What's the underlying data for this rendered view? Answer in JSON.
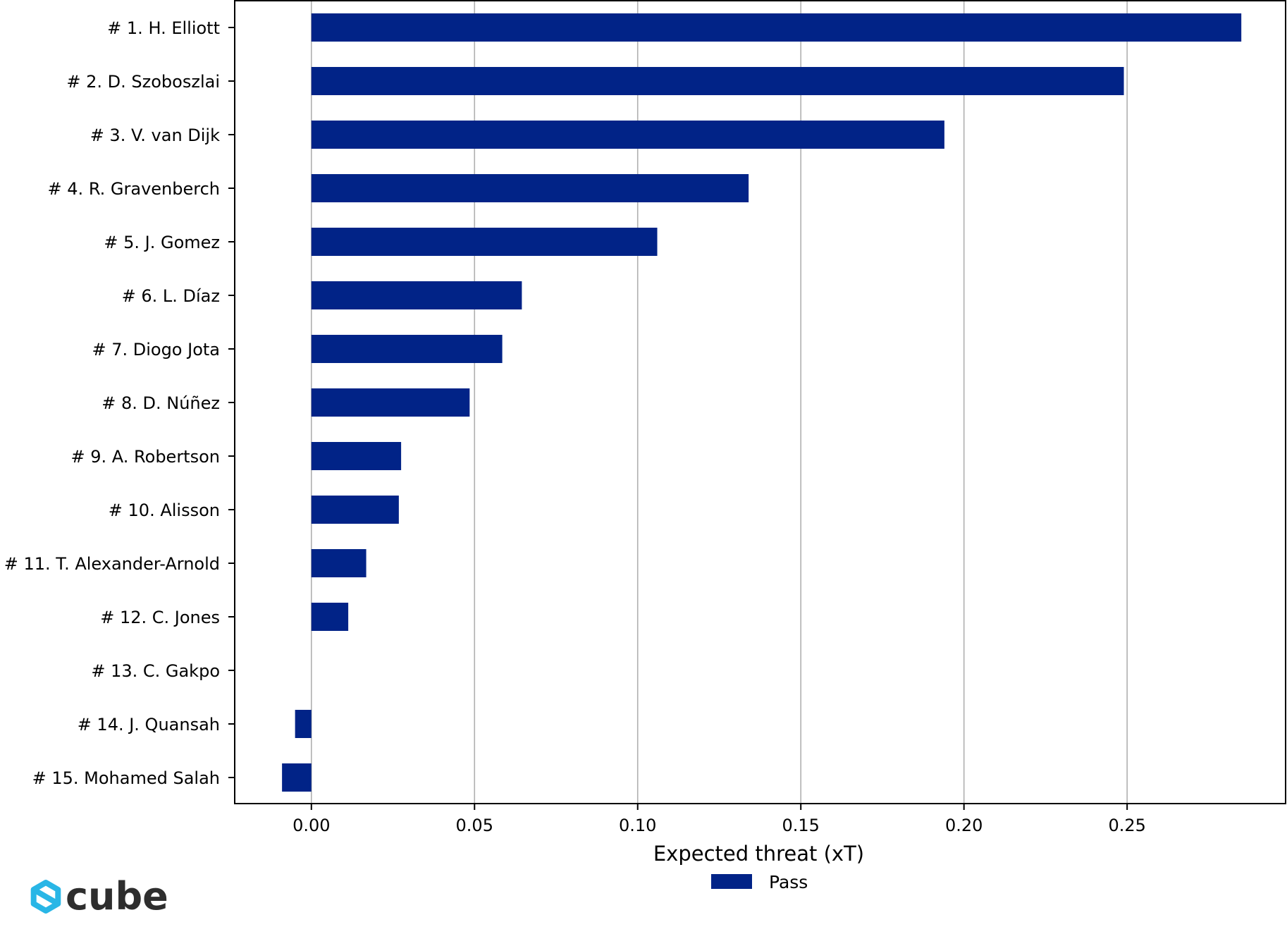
{
  "chart_data": {
    "type": "bar",
    "orientation": "horizontal",
    "categories": [
      "# 1.  H. Elliott",
      "# 2.  D. Szoboszlai",
      "# 3.  V. van Dijk",
      "# 4.  R. Gravenberch",
      "# 5.  J. Gomez",
      "# 6.  L. Díaz",
      "# 7.  Diogo Jota",
      "# 8.  D. Núñez",
      "# 9.  A. Robertson",
      "# 10.  Alisson",
      "# 11.  T. Alexander-Arnold",
      "# 12.  C. Jones",
      "# 13.  C. Gakpo",
      "# 14.  J. Quansah",
      "# 15.  Mohamed Salah"
    ],
    "series": [
      {
        "name": "Pass",
        "values": [
          0.285,
          0.249,
          0.194,
          0.134,
          0.106,
          0.0645,
          0.0585,
          0.0485,
          0.0275,
          0.0268,
          0.0168,
          0.0113,
          0.0,
          -0.005,
          -0.009
        ]
      }
    ],
    "xlabel": "Expected threat (xT)",
    "xlim": [
      -0.0235,
      0.299
    ],
    "xticks": [
      0.0,
      0.05,
      0.1,
      0.15,
      0.2,
      0.25
    ],
    "xtick_labels": [
      "0.00",
      "0.05",
      "0.10",
      "0.15",
      "0.20",
      "0.25"
    ],
    "grid": "vertical",
    "legend_position": "bottom-center",
    "bar_color": "#012387"
  },
  "logo": {
    "text": "cube",
    "icon": "cube-logo-icon",
    "icon_color": "#29b6e6"
  }
}
